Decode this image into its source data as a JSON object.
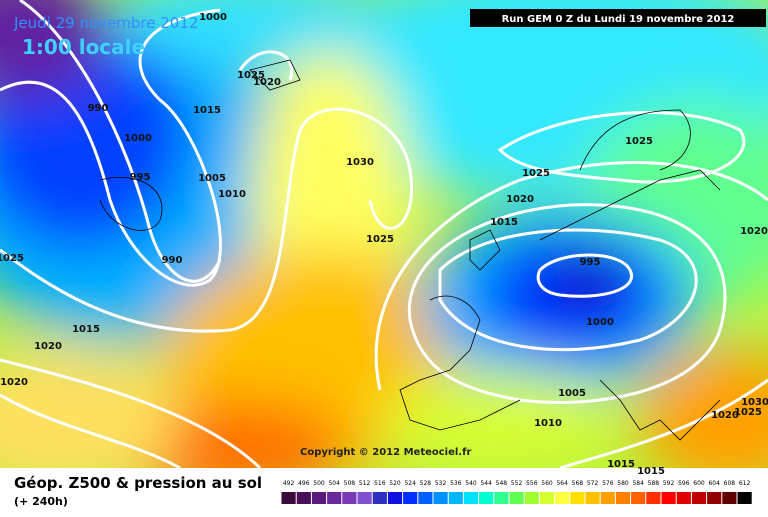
{
  "header": {
    "date": "Jeudi 29 novembre 2012",
    "time": "1:00 locale",
    "run": "Run GEM 0 Z du Lundi 19 novembre 2012"
  },
  "copyright": "Copyright © 2012 Meteociel.fr",
  "footer": {
    "title": "Géop. Z500 & pression au sol",
    "lead": "(+ 240h)"
  },
  "isobar_labels": [
    1000,
    1025,
    1020,
    1015,
    990,
    1000,
    995,
    1005,
    1010,
    990,
    1030,
    1025,
    1025,
    1025,
    1015,
    1020,
    995,
    1000,
    1020,
    1025,
    1015,
    1020,
    1020,
    1005,
    1010,
    1015,
    1015,
    1030,
    1020,
    1025
  ],
  "scale": {
    "values": [
      492,
      496,
      500,
      504,
      508,
      512,
      516,
      520,
      524,
      528,
      532,
      536,
      540,
      544,
      548,
      552,
      556,
      560,
      564,
      568,
      572,
      576,
      580,
      584,
      588,
      592,
      596,
      600,
      604,
      608,
      612
    ],
    "colors": [
      "#3a0a3a",
      "#4b0f5a",
      "#5a1a7a",
      "#6a2a9a",
      "#7a3ab8",
      "#8050d0",
      "#3030c0",
      "#1010e0",
      "#0030ff",
      "#0060ff",
      "#0090ff",
      "#00b8ff",
      "#00e0ff",
      "#00ffd0",
      "#30ff90",
      "#60ff50",
      "#a0ff30",
      "#d8ff30",
      "#ffff40",
      "#ffe000",
      "#ffc000",
      "#ffa000",
      "#ff8000",
      "#ff6000",
      "#ff3000",
      "#ff0000",
      "#e00000",
      "#c00000",
      "#900000",
      "#600000",
      "#000000"
    ]
  }
}
